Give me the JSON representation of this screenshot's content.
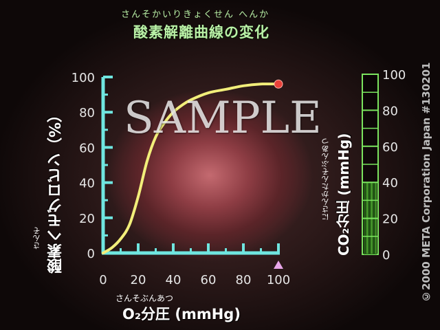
{
  "title_ruby": "さんそかいりきょくせん へんか",
  "title": "酸素解離曲線の変化",
  "watermark": "SAMPLE",
  "copyright": "©2000 META Corporation Japan #130201",
  "marker_color": "#e8a6e8",
  "colors": {
    "axis": "#6fe6e0",
    "curve": "#f2ee7a",
    "endpoint": "#e8413a",
    "gauge": "#7be55f"
  },
  "chart_data": {
    "type": "line",
    "title": "酸素解離曲線の変化",
    "xlabel": "O₂分圧 (mmHg)",
    "xlabel_ruby": "さんそぶんあつ",
    "ylabel": "酸素ヘモグロビン（%）",
    "ylabel_ruby": "さんそ",
    "xlim": [
      0,
      100
    ],
    "ylim": [
      0,
      100
    ],
    "xticks": [
      "0",
      "20",
      "40",
      "60",
      "80",
      "100"
    ],
    "yticks": [
      "100",
      "80",
      "60",
      "40",
      "20",
      "0"
    ],
    "grid": false,
    "series": [
      {
        "x": [
          0,
          5,
          10,
          15,
          20,
          25,
          30,
          35,
          40,
          45,
          50,
          60,
          70,
          80,
          90,
          100
        ],
        "y": [
          0,
          3,
          8,
          16,
          32,
          52,
          66,
          74,
          80,
          84,
          87,
          91,
          93,
          95,
          96,
          96
        ]
      }
    ],
    "endpoint": {
      "x": 100,
      "y": 96
    },
    "marker": {
      "x": 100
    },
    "secondary_axis": {
      "label": "CO₂分圧 (mmHg)",
      "label_ruby": "にさんかたんそぶんあつ",
      "ticks": [
        "100",
        "80",
        "60",
        "40",
        "20",
        "0"
      ],
      "range": [
        0,
        100
      ],
      "value": 40
    }
  }
}
